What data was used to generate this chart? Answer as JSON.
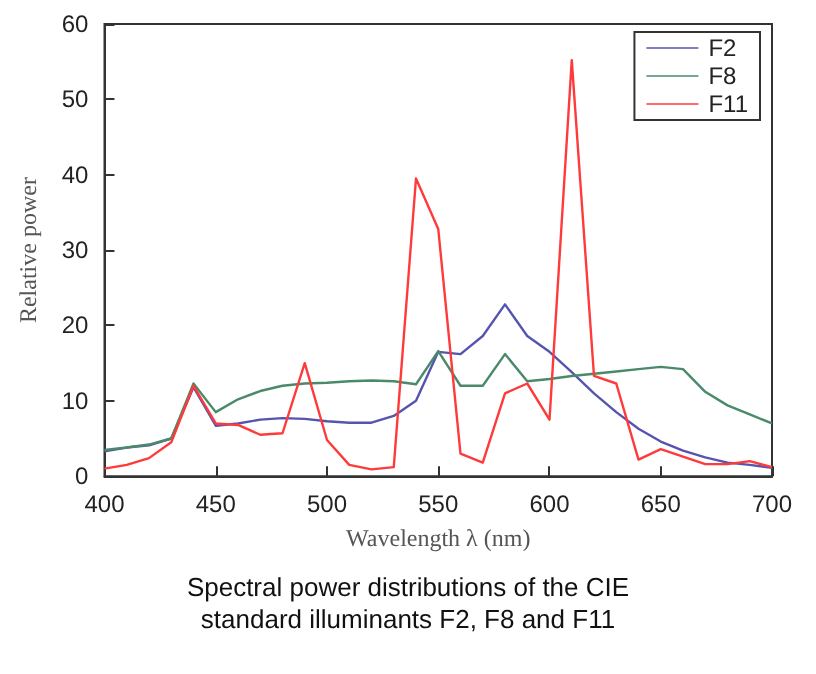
{
  "chart_data": {
    "type": "line",
    "xlabel": "Wavelength λ (nm)",
    "ylabel": "Relative power",
    "annotations": [
      "Spectral power distributions of the CIE standard illuminants F2, F8 and F11"
    ],
    "x": [
      400,
      410,
      420,
      430,
      440,
      450,
      460,
      470,
      480,
      490,
      500,
      510,
      520,
      530,
      540,
      550,
      560,
      570,
      580,
      590,
      600,
      610,
      620,
      630,
      640,
      650,
      660,
      670,
      680,
      690,
      700
    ],
    "series": [
      {
        "name": "F2",
        "color": "#5555b0",
        "values": [
          3.3,
          3.8,
          4.1,
          5.0,
          11.8,
          6.7,
          7.0,
          7.5,
          7.7,
          7.6,
          7.3,
          7.1,
          7.1,
          8.0,
          10.0,
          16.5,
          16.2,
          18.6,
          22.8,
          18.6,
          16.5,
          13.8,
          11.0,
          8.5,
          6.3,
          4.6,
          3.4,
          2.5,
          1.8,
          1.5,
          1.1
        ]
      },
      {
        "name": "F8",
        "color": "#4a8a6a",
        "values": [
          3.5,
          3.8,
          4.2,
          5.0,
          12.3,
          8.5,
          10.2,
          11.3,
          12.0,
          12.3,
          12.4,
          12.6,
          12.7,
          12.6,
          12.2,
          16.6,
          12.0,
          12.0,
          16.2,
          12.6,
          12.9,
          13.3,
          13.6,
          13.9,
          14.2,
          14.5,
          14.2,
          11.2,
          9.4,
          8.2,
          7.0
        ]
      },
      {
        "name": "F11",
        "color": "#ff3a3a",
        "values": [
          1.0,
          1.5,
          2.4,
          4.5,
          12.0,
          7.0,
          6.8,
          5.5,
          5.7,
          15.0,
          4.8,
          1.5,
          0.9,
          1.2,
          39.5,
          32.8,
          3.0,
          1.8,
          11.0,
          12.3,
          7.5,
          55.2,
          13.3,
          12.3,
          2.2,
          3.6,
          2.6,
          1.6,
          1.6,
          2.0,
          1.2
        ]
      }
    ],
    "xlim": [
      400,
      700
    ],
    "xticks": [
      400,
      450,
      500,
      550,
      600,
      650,
      700
    ],
    "ylim": [
      0,
      60
    ],
    "yticks": [
      0,
      10,
      20,
      30,
      40,
      50,
      60
    ],
    "grid": false,
    "legend": "top right",
    "marker": "none",
    "line_style": "solid"
  }
}
